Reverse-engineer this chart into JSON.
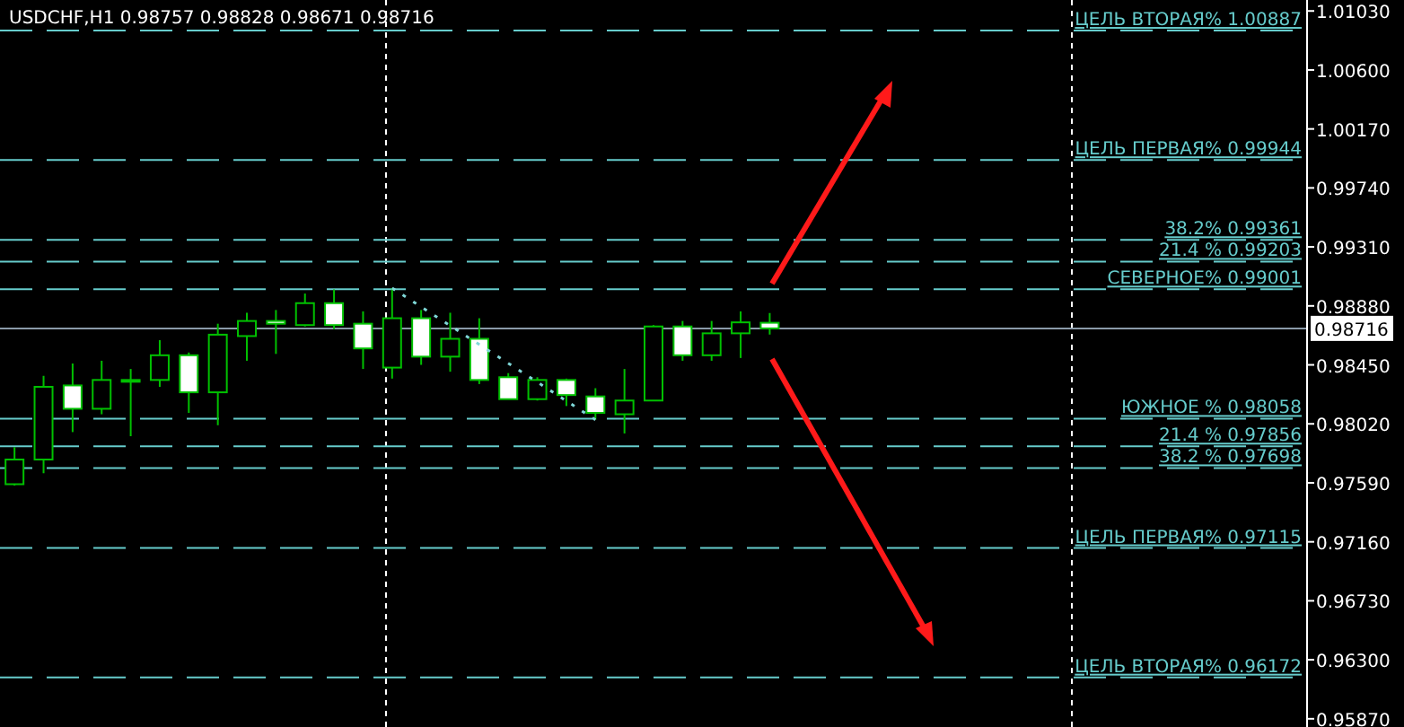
{
  "chart_data": {
    "type": "candlestick",
    "title": "USDCHF,H1 0.98757 0.98828 0.98671 0.98716",
    "color": "#00c000",
    "categories": [
      null,
      null,
      null,
      null,
      null,
      null,
      null,
      null,
      null,
      null,
      null,
      null,
      null,
      null,
      null,
      null,
      null,
      null,
      null,
      null,
      null,
      null,
      null,
      null,
      null,
      null,
      null,
      null,
      null,
      null,
      null,
      null,
      null,
      null,
      null,
      null,
      null,
      null,
      null,
      null,
      null,
      null,
      null,
      null,
      null
    ],
    "ohlc": [
      [
        0.9758,
        0.9785,
        0.9757,
        0.9776
      ],
      [
        0.9776,
        0.9837,
        0.9766,
        0.9829
      ],
      [
        0.983,
        0.9846,
        0.9796,
        0.9813
      ],
      [
        0.9813,
        0.9848,
        0.9809,
        0.9834
      ],
      [
        0.9834,
        0.9842,
        0.9793,
        0.9834
      ],
      [
        0.9834,
        0.9863,
        0.9829,
        0.9852
      ],
      [
        0.9852,
        0.9854,
        0.981,
        0.9825
      ],
      [
        0.9825,
        0.9875,
        0.9801,
        0.9867
      ],
      [
        0.9866,
        0.9883,
        0.9848,
        0.9877
      ],
      [
        0.9877,
        0.9885,
        0.9853,
        0.9875
      ],
      [
        0.9874,
        0.9897,
        0.9873,
        0.989
      ],
      [
        0.989,
        0.99,
        0.9871,
        0.9874
      ],
      [
        0.9875,
        0.9884,
        0.9842,
        0.9857
      ],
      [
        0.9843,
        0.9901,
        0.9835,
        0.9879
      ],
      [
        0.9879,
        0.9885,
        0.9845,
        0.9851
      ],
      [
        0.9851,
        0.9883,
        0.984,
        0.9864
      ],
      [
        0.9864,
        0.9879,
        0.9831,
        0.9834
      ],
      [
        0.9836,
        0.9839,
        0.982,
        0.982
      ],
      [
        0.982,
        0.9836,
        0.9819,
        0.9834
      ],
      [
        0.9834,
        0.9835,
        0.9815,
        0.9823
      ],
      [
        0.9822,
        0.9828,
        0.9805,
        0.981
      ],
      [
        0.9809,
        0.9842,
        0.9795,
        0.9819
      ],
      [
        0.9819,
        0.9874,
        0.9819,
        0.9873
      ],
      [
        0.9873,
        0.9877,
        0.9848,
        0.9852
      ],
      [
        0.9852,
        0.9877,
        0.9848,
        0.9868
      ],
      [
        0.9868,
        0.9884,
        0.985,
        0.9876
      ],
      [
        0.98757,
        0.98828,
        0.98671,
        0.98716
      ],
      null,
      null,
      null,
      null,
      null,
      null,
      null,
      null,
      null,
      null,
      null,
      null,
      null,
      null,
      null,
      null,
      null,
      null
    ],
    "series": [
      {
        "type": "line",
        "values": [
          null,
          null,
          null,
          null,
          null,
          null,
          null,
          null,
          null,
          null,
          null,
          null,
          null,
          0.9901,
          null,
          null,
          null,
          null,
          null,
          null,
          0.9805,
          null,
          null,
          null,
          null,
          null,
          null,
          null,
          null,
          null,
          null,
          null,
          null,
          null,
          null,
          null,
          null,
          null,
          null,
          null,
          null,
          null,
          null,
          null,
          null
        ],
        "color": "#7fd8d8",
        "line_style": "dotted"
      }
    ],
    "ylim": [
      0.9581,
      1.0111
    ],
    "yticks": [
      {
        "value": 1.0103,
        "label": "1.01030"
      },
      {
        "value": 1.006,
        "label": "1.00600"
      },
      {
        "value": 1.0017,
        "label": "1.00170"
      },
      {
        "value": 0.9974,
        "label": "0.99740"
      },
      {
        "value": 0.9931,
        "label": "0.99310"
      },
      {
        "value": 0.9888,
        "label": "0.98880"
      },
      {
        "value": 0.9845,
        "label": "0.98450"
      },
      {
        "value": 0.9802,
        "label": "0.98020"
      },
      {
        "value": 0.9759,
        "label": "0.97590"
      },
      {
        "value": 0.9716,
        "label": "0.97160"
      },
      {
        "value": 0.9673,
        "label": "0.96730"
      },
      {
        "value": 0.963,
        "label": "0.96300"
      },
      {
        "value": 0.9587,
        "label": "0.95870"
      }
    ],
    "ref_lines": [
      {
        "axis": "y",
        "value": 1.00887,
        "label": "ЦЕЛЬ ВТОРАЯ% 1.00887",
        "color": "#66cccc",
        "line_style": "dashed"
      },
      {
        "axis": "y",
        "value": 0.99944,
        "label": "ЦЕЛЬ ПЕРВАЯ% 0.99944",
        "color": "#66cccc",
        "line_style": "dashed"
      },
      {
        "axis": "y",
        "value": 0.99361,
        "label": "38.2% 0.99361",
        "color": "#66cccc",
        "line_style": "dashed"
      },
      {
        "axis": "y",
        "value": 0.99203,
        "label": "21.4 % 0.99203",
        "color": "#66cccc",
        "line_style": "dashed"
      },
      {
        "axis": "y",
        "value": 0.99001,
        "label": "СЕВЕРНОЕ% 0.99001",
        "color": "#66cccc",
        "line_style": "dashed"
      },
      {
        "axis": "y",
        "value": 0.98058,
        "label": "ЮЖНОЕ % 0.98058",
        "color": "#66cccc",
        "line_style": "dashed"
      },
      {
        "axis": "y",
        "value": 0.97856,
        "label": "21.4 % 0.97856",
        "color": "#66cccc",
        "line_style": "dashed"
      },
      {
        "axis": "y",
        "value": 0.97698,
        "label": "38.2 % 0.97698",
        "color": "#66cccc",
        "line_style": "dashed"
      },
      {
        "axis": "y",
        "value": 0.97115,
        "label": "ЦЕЛЬ ПЕРВАЯ% 0.97115",
        "color": "#66cccc",
        "line_style": "dashed"
      },
      {
        "axis": "y",
        "value": 0.96172,
        "label": "ЦЕЛЬ ВТОРАЯ% 0.96172",
        "color": "#66cccc",
        "line_style": "dashed"
      },
      {
        "axis": "y",
        "value": 0.98716,
        "label": "0.98716",
        "color": "#8a9aa8",
        "line_style": "solid"
      }
    ]
  }
}
